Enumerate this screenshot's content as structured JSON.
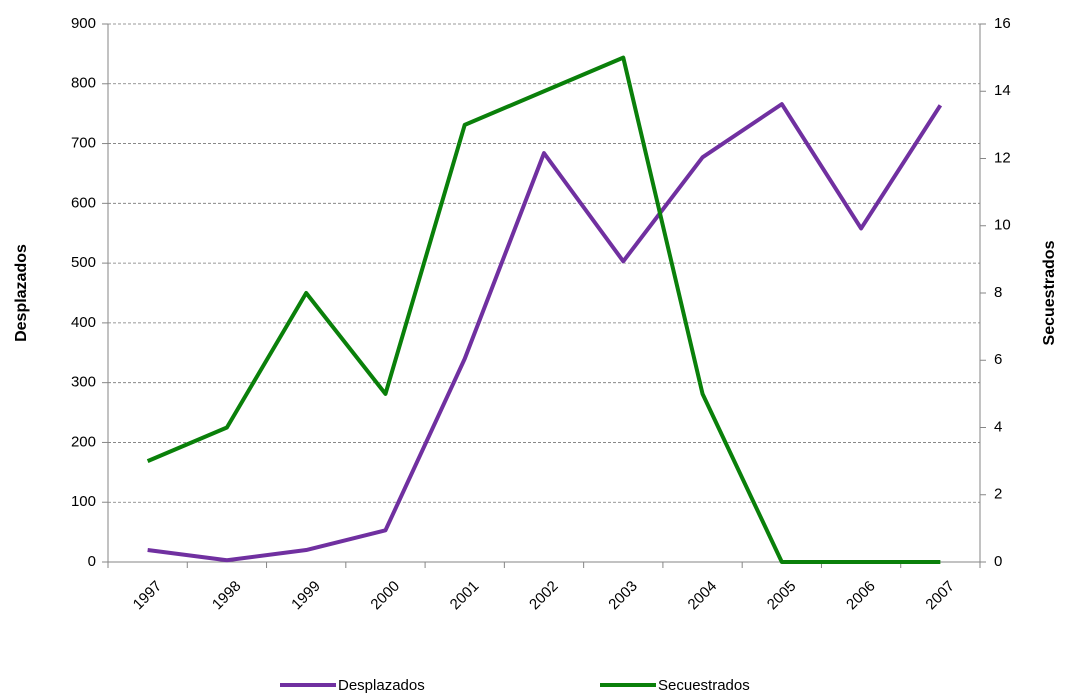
{
  "chart_data": {
    "type": "line",
    "categories": [
      "1997",
      "1998",
      "1999",
      "2000",
      "2001",
      "2002",
      "2003",
      "2004",
      "2005",
      "2006",
      "2007"
    ],
    "series": [
      {
        "name": "Desplazados",
        "color": "#7030a0",
        "values": [
          20,
          3,
          20,
          53,
          340,
          684,
          503,
          677,
          766,
          558,
          764
        ]
      },
      {
        "name": "Secuestrados",
        "color": "#0a800a",
        "axis": "y2",
        "values": [
          3,
          4,
          8,
          5,
          13,
          14,
          15,
          5,
          0,
          0,
          0
        ]
      }
    ],
    "y_label": "Desplazados",
    "y2_label": "Secuestrados",
    "ylim": [
      0,
      900
    ],
    "yticks": [
      0,
      100,
      200,
      300,
      400,
      500,
      600,
      700,
      800,
      900
    ],
    "y2lim": [
      0,
      16
    ],
    "y2ticks": [
      0,
      2,
      4,
      6,
      8,
      10,
      12,
      14,
      16
    ],
    "grid": true,
    "legend": "bottom"
  }
}
